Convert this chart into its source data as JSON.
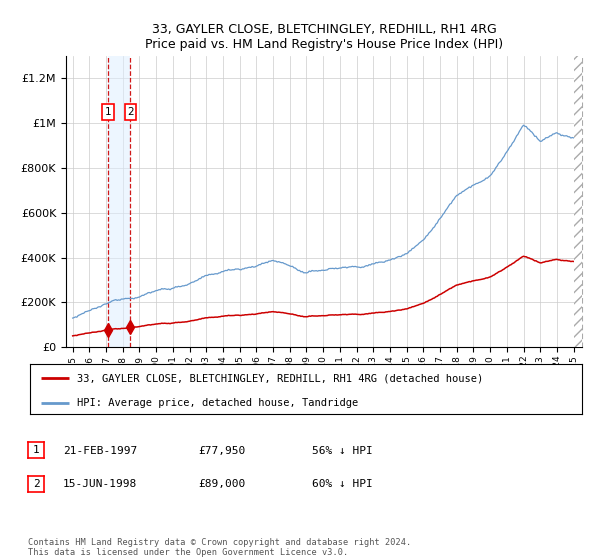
{
  "title1": "33, GAYLER CLOSE, BLETCHINGLEY, REDHILL, RH1 4RG",
  "title2": "Price paid vs. HM Land Registry's House Price Index (HPI)",
  "legend_line1": "33, GAYLER CLOSE, BLETCHINGLEY, REDHILL, RH1 4RG (detached house)",
  "legend_line2": "HPI: Average price, detached house, Tandridge",
  "sale1_date": "21-FEB-1997",
  "sale1_price": 77950,
  "sale1_pct": "56% ↓ HPI",
  "sale2_date": "15-JUN-1998",
  "sale2_price": 89000,
  "sale2_pct": "60% ↓ HPI",
  "footnote": "Contains HM Land Registry data © Crown copyright and database right 2024.\nThis data is licensed under the Open Government Licence v3.0.",
  "hpi_color": "#6699cc",
  "price_color": "#cc0000",
  "shading_color": "#ddeeff",
  "sale1_x": 1997.13,
  "sale2_x": 1998.46,
  "ylim_max": 1300000,
  "ylim_min": 0,
  "yticks": [
    0,
    200000,
    400000,
    600000,
    800000,
    1000000,
    1200000
  ],
  "ytick_labels": [
    "£0",
    "£200K",
    "£400K",
    "£600K",
    "£800K",
    "£1M",
    "£1.2M"
  ]
}
